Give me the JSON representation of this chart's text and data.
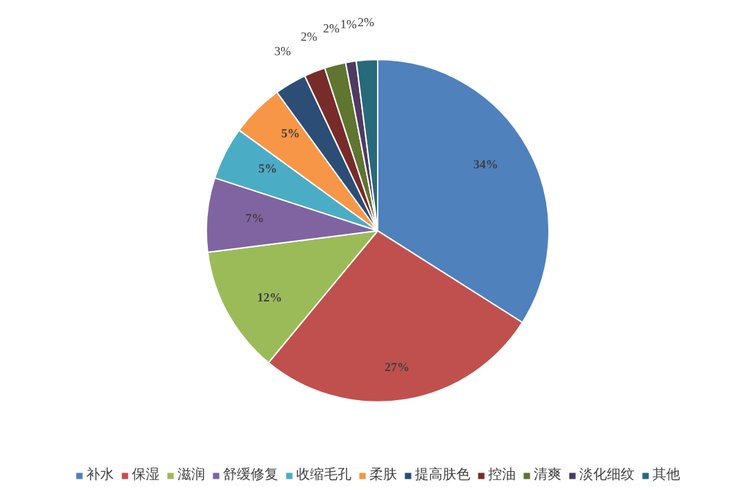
{
  "chart_data": {
    "type": "pie",
    "categories": [
      "补水",
      "保湿",
      "滋润",
      "舒缓修复",
      "收缩毛孔",
      "柔肤",
      "提高肤色",
      "控油",
      "清爽",
      "淡化细纹",
      "其他"
    ],
    "values": [
      34,
      27,
      12,
      7,
      5,
      5,
      3,
      2,
      2,
      1,
      2
    ],
    "colors": [
      "#4f81bd",
      "#c0504d",
      "#9bbb59",
      "#8064a2",
      "#4bacc6",
      "#f79646",
      "#2c4d75",
      "#772c2a",
      "#5f7530",
      "#4d3b62",
      "#276a7c"
    ],
    "value_labels": [
      "34%",
      "27%",
      "12%",
      "7%",
      "5%",
      "5%",
      "3%",
      "2%",
      "2%",
      "1%",
      "2%"
    ],
    "legend": "bottom"
  }
}
